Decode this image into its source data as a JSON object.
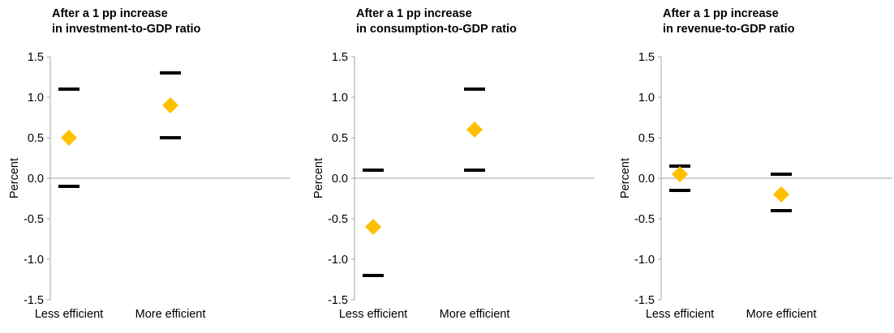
{
  "panels": [
    {
      "title_line1": "After a 1 pp increase",
      "title_line2": "in investment-to-GDP ratio",
      "ylabel": "Percent",
      "categories": [
        "Less efficient",
        "More efficient"
      ]
    },
    {
      "title_line1": "After a 1 pp increase",
      "title_line2": "in consumption-to-GDP ratio",
      "ylabel": "Percent",
      "categories": [
        "Less efficient",
        "More efficient"
      ]
    },
    {
      "title_line1": "After a 1 pp increase",
      "title_line2": "in revenue-to-GDP ratio",
      "ylabel": "Percent",
      "categories": [
        "Less efficient",
        "More efficient"
      ]
    }
  ],
  "colors": {
    "estimate": "#FFC000",
    "band": "#000000",
    "axis": "#A6A6A6"
  },
  "chart_data": [
    {
      "type": "scatter",
      "title": "After a 1 pp increase in investment-to-GDP ratio",
      "ylabel": "Percent",
      "categories": [
        "Less efficient",
        "More efficient"
      ],
      "estimate": [
        0.5,
        0.9
      ],
      "upper": [
        1.1,
        1.3
      ],
      "lower": [
        -0.1,
        0.5
      ],
      "ylim": [
        -1.5,
        1.5
      ],
      "yticks": [
        "1.5",
        "1.0",
        "0.5",
        "0.0",
        "-0.5",
        "-1.0",
        "-1.5"
      ],
      "grid": false
    },
    {
      "type": "scatter",
      "title": "After a 1 pp increase in consumption-to-GDP ratio",
      "ylabel": "Percent",
      "categories": [
        "Less efficient",
        "More efficient"
      ],
      "estimate": [
        -0.6,
        0.6
      ],
      "upper": [
        0.1,
        1.1
      ],
      "lower": [
        -1.2,
        0.1
      ],
      "ylim": [
        -1.5,
        1.5
      ],
      "yticks": [
        "1.5",
        "1.0",
        "0.5",
        "0.0",
        "-0.5",
        "-1.0",
        "-1.5"
      ],
      "grid": false
    },
    {
      "type": "scatter",
      "title": "After a 1 pp increase in revenue-to-GDP ratio",
      "ylabel": "Percent",
      "categories": [
        "Less efficient",
        "More efficient"
      ],
      "estimate": [
        0.05,
        -0.2
      ],
      "upper": [
        0.15,
        0.05
      ],
      "lower": [
        -0.15,
        -0.4
      ],
      "ylim": [
        -1.5,
        1.5
      ],
      "yticks": [
        "1.5",
        "1.0",
        "0.5",
        "0.0",
        "-0.5",
        "-1.0",
        "-1.5"
      ],
      "grid": false
    }
  ]
}
